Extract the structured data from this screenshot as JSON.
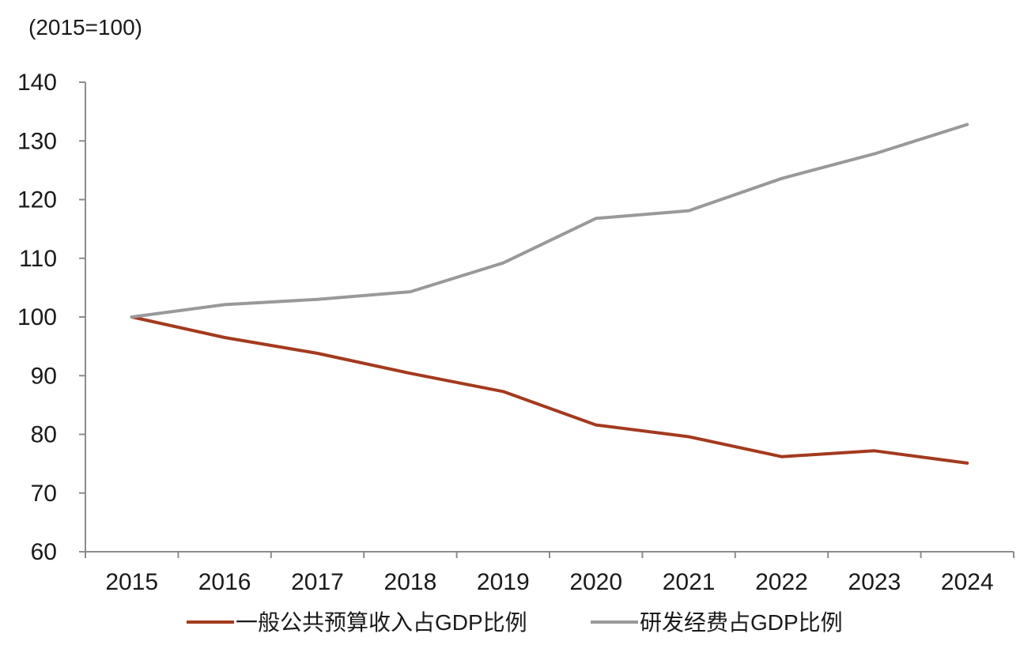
{
  "chart_data": {
    "type": "line",
    "title": "",
    "unit_label": "(2015=100)",
    "xlabel": "",
    "ylabel": "",
    "x": [
      "2015",
      "2016",
      "2017",
      "2018",
      "2019",
      "2020",
      "2021",
      "2022",
      "2023",
      "2024"
    ],
    "ylim": [
      60,
      140
    ],
    "yticks": [
      "60",
      "70",
      "80",
      "90",
      "100",
      "110",
      "120",
      "130",
      "140"
    ],
    "grid": false,
    "legend_position": "bottom",
    "series": [
      {
        "name": "一般公共预算收入占GDP比例",
        "color": "#a33a1e",
        "values": [
          100,
          96.5,
          93.8,
          90.4,
          87.3,
          81.6,
          79.6,
          76.2,
          77.2,
          75.1
        ]
      },
      {
        "name": "研发经费占GDP比例",
        "color": "#999999",
        "values": [
          100,
          102.1,
          103.0,
          104.3,
          109.2,
          116.8,
          118.1,
          123.6,
          127.8,
          132.8
        ]
      }
    ]
  }
}
